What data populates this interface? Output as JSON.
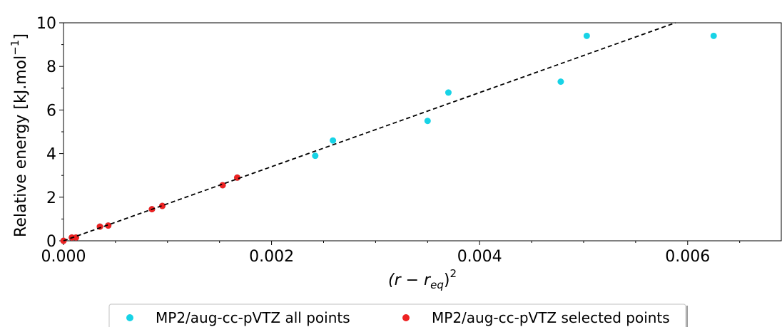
{
  "chart_data": {
    "type": "scatter",
    "xlabel_base": "(r − r",
    "xlabel_sub": "eq",
    "xlabel_tail": ")",
    "xlabel_sup": "2",
    "ylabel_base": "Relative energy [kJ.mol",
    "ylabel_sup": "−1",
    "ylabel_tail": "]",
    "xlim": [
      0,
      0.0069
    ],
    "ylim": [
      0,
      10
    ],
    "x_ticks": [
      0.0,
      0.002,
      0.004,
      0.006
    ],
    "x_tick_labels": [
      "0.000",
      "0.002",
      "0.004",
      "0.006"
    ],
    "y_ticks": [
      0,
      2,
      4,
      6,
      8,
      10
    ],
    "y_tick_labels": [
      "0",
      "2",
      "4",
      "6",
      "8",
      "10"
    ],
    "grid": false,
    "legend_position": "bottom-center",
    "series": [
      {
        "name": "MP2/aug-cc-pVTZ all points",
        "color": "#17d3e6",
        "x": [
          0.0,
          8e-05,
          0.00012,
          0.00035,
          0.00043,
          0.00085,
          0.00095,
          0.00153,
          0.00167,
          0.00242,
          0.00259,
          0.0035,
          0.0037,
          0.00478,
          0.00503,
          0.00625
        ],
        "y": [
          0.0,
          0.15,
          0.15,
          0.65,
          0.7,
          1.45,
          1.6,
          2.55,
          2.9,
          3.9,
          4.6,
          5.5,
          6.8,
          7.3,
          9.4,
          9.4
        ]
      },
      {
        "name": "MP2/aug-cc-pVTZ selected points",
        "color": "#ee2222",
        "x": [
          0.0,
          8e-05,
          0.00012,
          0.00035,
          0.00043,
          0.00085,
          0.00095,
          0.00153,
          0.00167
        ],
        "y": [
          0.0,
          0.15,
          0.15,
          0.65,
          0.7,
          1.45,
          1.6,
          2.55,
          2.9
        ]
      }
    ],
    "fit_line": {
      "style": "dashed",
      "color": "#000000",
      "slope": 1700,
      "intercept": 0
    }
  }
}
